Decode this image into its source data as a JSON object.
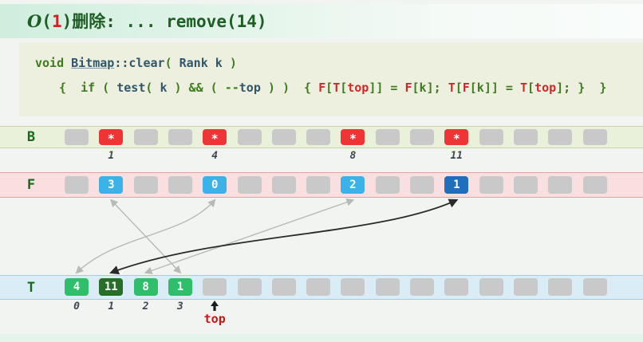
{
  "title": {
    "text": "O(1)删除: ... remove(14)",
    "tokens": [
      {
        "t": "O",
        "c": "tg ti"
      },
      {
        "t": "(",
        "c": "tg"
      },
      {
        "t": "1",
        "c": "tr"
      },
      {
        "t": ")删除: ... remove(14)",
        "c": "tg"
      }
    ]
  },
  "code": {
    "lines": [
      {
        "tokens": [
          {
            "t": "void ",
            "c": "kw"
          },
          {
            "t": "Bitmap",
            "c": "id u"
          },
          {
            "t": "::",
            "c": "id"
          },
          {
            "t": "clear",
            "c": "id"
          },
          {
            "t": "( ",
            "c": "kw"
          },
          {
            "t": "Rank k",
            "c": "id"
          },
          {
            "t": " )",
            "c": "kw"
          }
        ]
      },
      {
        "tokens": [
          {
            "t": "{  if ( ",
            "c": "kw"
          },
          {
            "t": "test",
            "c": "id"
          },
          {
            "t": "( ",
            "c": "kw"
          },
          {
            "t": "k",
            "c": "id"
          },
          {
            "t": " ) && ( --",
            "c": "kw"
          },
          {
            "t": "top",
            "c": "id"
          },
          {
            "t": " ) )  { ",
            "c": "kw"
          },
          {
            "t": "F",
            "c": "hl"
          },
          {
            "t": "[",
            "c": "kw"
          },
          {
            "t": "T",
            "c": "hl"
          },
          {
            "t": "[",
            "c": "kw"
          },
          {
            "t": "top",
            "c": "hl"
          },
          {
            "t": "]] = ",
            "c": "kw"
          },
          {
            "t": "F",
            "c": "hl"
          },
          {
            "t": "[k]; ",
            "c": "kw"
          },
          {
            "t": "T",
            "c": "hl"
          },
          {
            "t": "[",
            "c": "kw"
          },
          {
            "t": "F",
            "c": "hl"
          },
          {
            "t": "[k]] = ",
            "c": "kw"
          },
          {
            "t": "T",
            "c": "hl"
          },
          {
            "t": "[",
            "c": "kw"
          },
          {
            "t": "top",
            "c": "hl"
          },
          {
            "t": "]; }  }",
            "c": "kw"
          }
        ]
      }
    ]
  },
  "rows": {
    "B": {
      "label": "B",
      "cells": [
        {
          "type": "empty"
        },
        {
          "type": "red",
          "value": "*"
        },
        {
          "type": "empty"
        },
        {
          "type": "empty"
        },
        {
          "type": "red",
          "value": "*"
        },
        {
          "type": "empty"
        },
        {
          "type": "empty"
        },
        {
          "type": "empty"
        },
        {
          "type": "red",
          "value": "*"
        },
        {
          "type": "empty"
        },
        {
          "type": "empty"
        },
        {
          "type": "red",
          "value": "*"
        },
        {
          "type": "empty"
        },
        {
          "type": "empty"
        },
        {
          "type": "empty"
        },
        {
          "type": "empty"
        }
      ]
    },
    "F": {
      "label": "F",
      "cells": [
        {
          "type": "empty"
        },
        {
          "type": "blue",
          "value": "3"
        },
        {
          "type": "empty"
        },
        {
          "type": "empty"
        },
        {
          "type": "blue",
          "value": "0"
        },
        {
          "type": "empty"
        },
        {
          "type": "empty"
        },
        {
          "type": "empty"
        },
        {
          "type": "blue",
          "value": "2"
        },
        {
          "type": "empty"
        },
        {
          "type": "empty"
        },
        {
          "type": "blue-dark",
          "value": "1"
        },
        {
          "type": "empty"
        },
        {
          "type": "empty"
        },
        {
          "type": "empty"
        },
        {
          "type": "empty"
        }
      ]
    },
    "T": {
      "label": "T",
      "cells": [
        {
          "type": "green",
          "value": "4"
        },
        {
          "type": "green-dark",
          "value": "11"
        },
        {
          "type": "green",
          "value": "8"
        },
        {
          "type": "green",
          "value": "1"
        },
        {
          "type": "empty"
        },
        {
          "type": "empty"
        },
        {
          "type": "empty"
        },
        {
          "type": "empty"
        },
        {
          "type": "empty"
        },
        {
          "type": "empty"
        },
        {
          "type": "empty"
        },
        {
          "type": "empty"
        },
        {
          "type": "empty"
        },
        {
          "type": "empty"
        },
        {
          "type": "empty"
        },
        {
          "type": "empty"
        }
      ]
    }
  },
  "indices": {
    "B": [
      {
        "cell": 1,
        "label": "1"
      },
      {
        "cell": 4,
        "label": "4"
      },
      {
        "cell": 8,
        "label": "8"
      },
      {
        "cell": 11,
        "label": "11"
      }
    ],
    "T": [
      {
        "cell": 0,
        "label": "0"
      },
      {
        "cell": 1,
        "label": "1"
      },
      {
        "cell": 2,
        "label": "2"
      },
      {
        "cell": 3,
        "label": "3"
      }
    ]
  },
  "connections": [
    {
      "from_row": "F",
      "from_cell": 4,
      "to_row": "T",
      "to_cell": 0,
      "color": "gray",
      "shape": "curve"
    },
    {
      "from_row": "F",
      "from_cell": 1,
      "to_row": "T",
      "to_cell": 3,
      "color": "gray",
      "shape": "straight"
    },
    {
      "from_row": "F",
      "from_cell": 8,
      "to_row": "T",
      "to_cell": 2,
      "color": "gray",
      "shape": "straight"
    },
    {
      "from_row": "F",
      "from_cell": 11,
      "to_row": "T",
      "to_cell": 1,
      "color": "black",
      "shape": "curve"
    }
  ],
  "top_pointer": {
    "cell": 4,
    "label": "top"
  },
  "colors": {
    "title_green": "#1e5e24",
    "highlight_red": "#d02828",
    "cell_gray": "#c9c9c9",
    "cell_red": "#ee3434",
    "cell_blue": "#3cb3e8",
    "cell_blue_dark": "#1f6fbc",
    "cell_green": "#2fbe6a",
    "cell_green_dark": "#276e27",
    "arrow_gray": "#b9b9b9",
    "arrow_black": "#2a2a2a"
  }
}
